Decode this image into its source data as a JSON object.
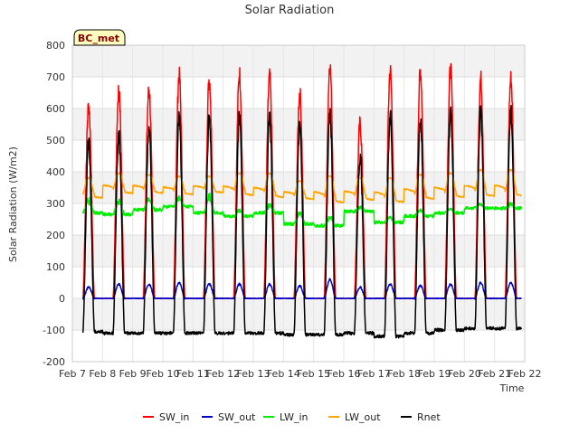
{
  "chart_data": {
    "type": "line",
    "title": "Solar Radiation",
    "badge": "BC_met",
    "xlabel": "Time",
    "ylabel": "Solar Radiation (W/m2)",
    "ylim": [
      -200,
      800
    ],
    "yticks": [
      -200,
      -100,
      0,
      100,
      200,
      300,
      400,
      500,
      600,
      700,
      800
    ],
    "xlim": [
      7,
      22
    ],
    "xticks": [
      {
        "v": 7,
        "label": "Feb 7"
      },
      {
        "v": 8,
        "label": "Feb 8"
      },
      {
        "v": 9,
        "label": "Feb 9"
      },
      {
        "v": 10,
        "label": "Feb 10"
      },
      {
        "v": 11,
        "label": "Feb 11"
      },
      {
        "v": 12,
        "label": "Feb 12"
      },
      {
        "v": 13,
        "label": "Feb 13"
      },
      {
        "v": 14,
        "label": "Feb 14"
      },
      {
        "v": 15,
        "label": "Feb 15"
      },
      {
        "v": 16,
        "label": "Feb 16"
      },
      {
        "v": 17,
        "label": "Feb 17"
      },
      {
        "v": 18,
        "label": "Feb 18"
      },
      {
        "v": 19,
        "label": "Feb 19"
      },
      {
        "v": 20,
        "label": "Feb 20"
      },
      {
        "v": 21,
        "label": "Feb 21"
      },
      {
        "v": 22,
        "label": "Feb 22"
      }
    ],
    "days": [
      7.35,
      8.35,
      9.35,
      10.35,
      11.35,
      12.35,
      13.35,
      14.35,
      15.35,
      16.35,
      17.35,
      18.35,
      19.35,
      20.35,
      21.35
    ],
    "data_start": 7.35,
    "data_end": 21.9,
    "series": [
      {
        "name": "SW_in",
        "color": "#ff0000",
        "daily_peak": [
          610,
          660,
          662,
          705,
          695,
          710,
          700,
          650,
          740,
          550,
          720,
          720,
          725,
          695
        ],
        "night": 0
      },
      {
        "name": "SW_out",
        "color": "#0000cc",
        "daily_peak": [
          35,
          45,
          45,
          50,
          45,
          45,
          45,
          40,
          60,
          35,
          45,
          40,
          45,
          50
        ],
        "night": 0
      },
      {
        "name": "LW_in",
        "color": "#00ee00",
        "daily_level": [
          270,
          265,
          280,
          290,
          270,
          260,
          270,
          235,
          230,
          275,
          240,
          260,
          270,
          285
        ],
        "daily_max": [
          320,
          320,
          320,
          325,
          330,
          280,
          300,
          280,
          260,
          290,
          260,
          285,
          285,
          300
        ]
      },
      {
        "name": "LW_out",
        "color": "#ffa500",
        "daily_max": [
          380,
          395,
          390,
          385,
          385,
          395,
          395,
          370,
          385,
          380,
          380,
          390,
          395,
          405
        ],
        "daily_min": [
          330,
          345,
          345,
          340,
          345,
          340,
          335,
          325,
          320,
          325,
          320,
          330,
          335,
          340
        ]
      },
      {
        "name": "Rnet",
        "color": "#000000",
        "daily_peak": [
          490,
          510,
          535,
          570,
          575,
          575,
          570,
          540,
          590,
          450,
          575,
          570,
          590,
          590
        ],
        "night": [
          -105,
          -110,
          -110,
          -110,
          -110,
          -110,
          -110,
          -115,
          -115,
          -110,
          -120,
          -110,
          -100,
          -95
        ]
      }
    ]
  }
}
